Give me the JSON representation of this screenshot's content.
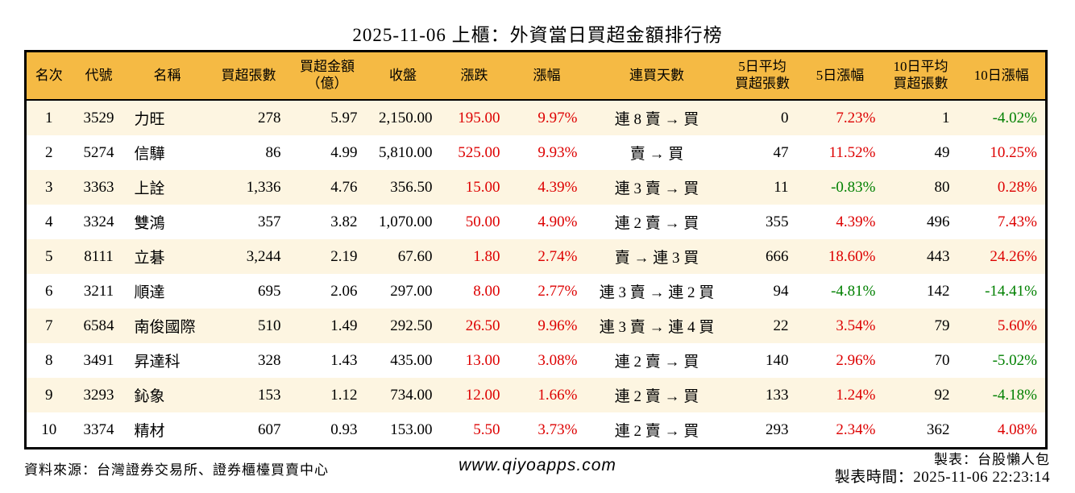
{
  "title": "2025-11-06 上櫃：外資當日買超金額排行榜",
  "table": {
    "columns": [
      {
        "key": "rank",
        "label": "名次",
        "align": "center",
        "signed": false
      },
      {
        "key": "code",
        "label": "代號",
        "align": "center",
        "signed": false
      },
      {
        "key": "name",
        "label": "名稱",
        "align": "left",
        "signed": false
      },
      {
        "key": "buy_volume",
        "label": "買超張數",
        "align": "right",
        "signed": false
      },
      {
        "key": "buy_amount",
        "label": "買超金額\n（億）",
        "align": "right",
        "signed": false
      },
      {
        "key": "close",
        "label": "收盤",
        "align": "right",
        "signed": false
      },
      {
        "key": "change",
        "label": "漲跌",
        "align": "right",
        "signed": true
      },
      {
        "key": "change_pct",
        "label": "漲幅",
        "align": "right",
        "signed": true
      },
      {
        "key": "buy_streak",
        "label": "連買天數",
        "align": "center",
        "signed": false
      },
      {
        "key": "avg5_volume",
        "label": "5日平均\n買超張數",
        "align": "right",
        "signed": false
      },
      {
        "key": "pct5",
        "label": "5日漲幅",
        "align": "right",
        "signed": true
      },
      {
        "key": "avg10_volume",
        "label": "10日平均\n買超張數",
        "align": "right",
        "signed": false
      },
      {
        "key": "pct10",
        "label": "10日漲幅",
        "align": "right",
        "signed": true
      }
    ],
    "rows": [
      [
        "1",
        "3529",
        "力旺",
        "278",
        "5.97",
        "2,150.00",
        "195.00",
        "9.97%",
        "連 8 賣 → 買",
        "0",
        "7.23%",
        "1",
        "-4.02%"
      ],
      [
        "2",
        "5274",
        "信驊",
        "86",
        "4.99",
        "5,810.00",
        "525.00",
        "9.93%",
        "賣 → 買",
        "47",
        "11.52%",
        "49",
        "10.25%"
      ],
      [
        "3",
        "3363",
        "上詮",
        "1,336",
        "4.76",
        "356.50",
        "15.00",
        "4.39%",
        "連 3 賣 → 買",
        "11",
        "-0.83%",
        "80",
        "0.28%"
      ],
      [
        "4",
        "3324",
        "雙鴻",
        "357",
        "3.82",
        "1,070.00",
        "50.00",
        "4.90%",
        "連 2 賣 → 買",
        "355",
        "4.39%",
        "496",
        "7.43%"
      ],
      [
        "5",
        "8111",
        "立碁",
        "3,244",
        "2.19",
        "67.60",
        "1.80",
        "2.74%",
        "賣 → 連 3 買",
        "666",
        "18.60%",
        "443",
        "24.26%"
      ],
      [
        "6",
        "3211",
        "順達",
        "695",
        "2.06",
        "297.00",
        "8.00",
        "2.77%",
        "連 3 賣 → 連 2 買",
        "94",
        "-4.81%",
        "142",
        "-14.41%"
      ],
      [
        "7",
        "6584",
        "南俊國際",
        "510",
        "1.49",
        "292.50",
        "26.50",
        "9.96%",
        "連 3 賣 → 連 4 買",
        "22",
        "3.54%",
        "79",
        "5.60%"
      ],
      [
        "8",
        "3491",
        "昇達科",
        "328",
        "1.43",
        "435.00",
        "13.00",
        "3.08%",
        "連 2 賣 → 買",
        "140",
        "2.96%",
        "70",
        "-5.02%"
      ],
      [
        "9",
        "3293",
        "鈊象",
        "153",
        "1.12",
        "734.00",
        "12.00",
        "1.66%",
        "連 2 賣 → 買",
        "133",
        "1.24%",
        "92",
        "-4.18%"
      ],
      [
        "10",
        "3374",
        "精材",
        "607",
        "0.93",
        "153.00",
        "5.50",
        "3.73%",
        "連 2 賣 → 買",
        "293",
        "2.34%",
        "362",
        "4.08%"
      ]
    ]
  },
  "footer": {
    "source": "資料來源：台灣證券交易所、證券櫃檯買賣中心",
    "website": "www.qiyoapps.com",
    "maker": "製表：台股懶人包",
    "generated_at": "製表時間：2025-11-06 22:23:14"
  },
  "colors": {
    "header_bg": "#F5BA44",
    "row_stripe": "#FDF5E1",
    "row_plain": "#FFFFFF",
    "up_red": "#DD0000",
    "down_green": "#008000",
    "border": "#000000"
  }
}
